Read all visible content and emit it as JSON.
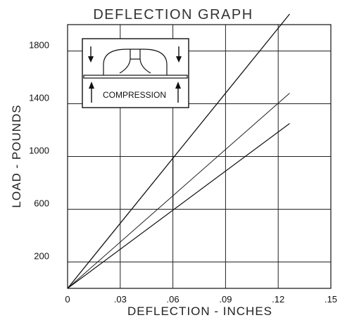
{
  "chart_data": {
    "type": "line",
    "title": "DEFLECTION GRAPH",
    "xlabel": "DEFLECTION - INCHES",
    "ylabel": "LOAD - POUNDS",
    "xlim": [
      0,
      0.15
    ],
    "ylim": [
      0,
      2000
    ],
    "x_ticks": [
      0,
      0.03,
      0.06,
      0.09,
      0.12,
      0.15
    ],
    "x_tick_labels": [
      "0",
      ".03",
      ".06",
      ".09",
      ".12",
      ".15"
    ],
    "y_ticks": [
      200,
      600,
      1000,
      1400,
      1800
    ],
    "y_tick_labels": [
      "200",
      "600",
      "1000",
      "1400",
      "1800"
    ],
    "grid": true,
    "series": [
      {
        "x": [
          0,
          0.1265
        ],
        "y": [
          0,
          2080
        ]
      },
      {
        "x": [
          0,
          0.1265
        ],
        "y": [
          0,
          1480
        ]
      },
      {
        "x": [
          0,
          0.1265
        ],
        "y": [
          0,
          1250
        ]
      }
    ],
    "marker_line": {
      "x": 0.06,
      "y": [
        600,
        1000
      ]
    },
    "inset": {
      "label": "COMPRESSION"
    }
  }
}
